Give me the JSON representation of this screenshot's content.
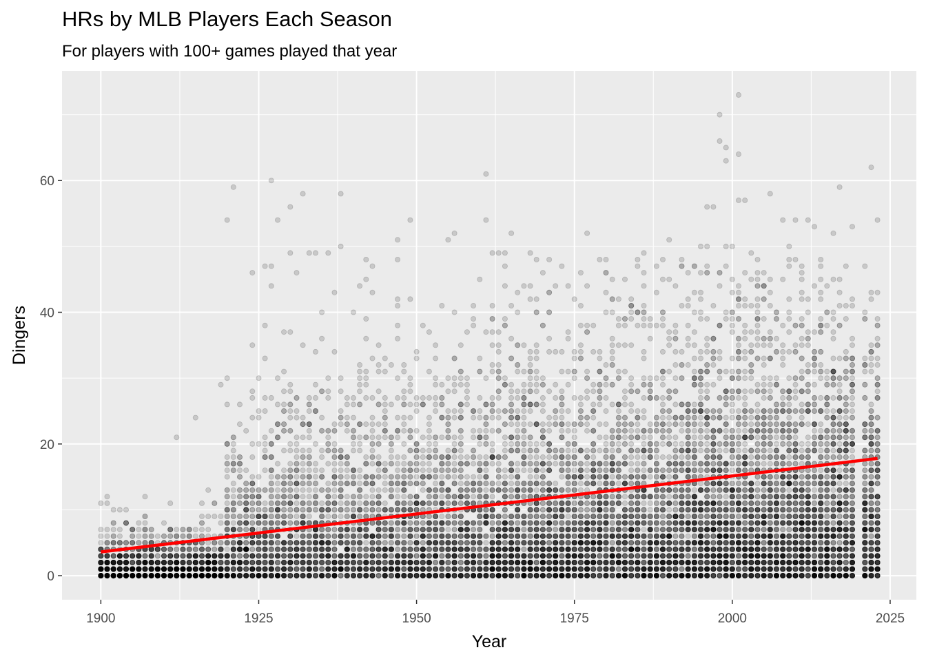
{
  "chart_data": {
    "type": "scatter",
    "title": "HRs by MLB Players Each Season",
    "subtitle": "For players with 100+ games played that year",
    "xlabel": "Year",
    "ylabel": "Dingers",
    "xlim": [
      1893.85,
      2029.15
    ],
    "ylim": [
      -3.65,
      76.65
    ],
    "x_ticks": [
      1900,
      1925,
      1950,
      1975,
      2000,
      2025
    ],
    "y_ticks": [
      0,
      20,
      40,
      60
    ],
    "grid": true,
    "background": "#EBEBEB",
    "point_color": "#000000",
    "point_alpha": 0.15,
    "trend": {
      "type": "linear",
      "color": "#FF0000",
      "points": [
        [
          1900,
          3.6
        ],
        [
          2023,
          17.8
        ]
      ]
    },
    "outliers": [
      [
        1921,
        59
      ],
      [
        1920,
        54
      ],
      [
        1927,
        60
      ],
      [
        1928,
        54
      ],
      [
        1930,
        56
      ],
      [
        1932,
        58
      ],
      [
        1938,
        58
      ],
      [
        1938,
        50
      ],
      [
        1961,
        61
      ],
      [
        1961,
        54
      ],
      [
        1949,
        54
      ],
      [
        1947,
        51
      ],
      [
        1998,
        70
      ],
      [
        1998,
        66
      ],
      [
        1999,
        65
      ],
      [
        1999,
        63
      ],
      [
        2001,
        73
      ],
      [
        2001,
        64
      ],
      [
        2022,
        62
      ],
      [
        2017,
        59
      ],
      [
        2006,
        58
      ],
      [
        1996,
        56
      ],
      [
        1997,
        56
      ],
      [
        2002,
        57
      ],
      [
        2001,
        57
      ],
      [
        2023,
        54
      ],
      [
        2010,
        54
      ],
      [
        1965,
        52
      ],
      [
        1977,
        52
      ],
      [
        1990,
        51
      ],
      [
        1956,
        52
      ],
      [
        1955,
        51
      ],
      [
        2013,
        53
      ],
      [
        2019,
        53
      ],
      [
        2016,
        52
      ],
      [
        1912,
        21
      ],
      [
        1915,
        24
      ],
      [
        1919,
        29
      ],
      [
        1930,
        49
      ],
      [
        1933,
        49
      ],
      [
        1934,
        49
      ],
      [
        1936,
        49
      ],
      [
        1924,
        46
      ],
      [
        1926,
        47
      ],
      [
        1927,
        47
      ],
      [
        1931,
        46
      ],
      [
        1962,
        49
      ],
      [
        1963,
        49
      ],
      [
        1964,
        49
      ],
      [
        1968,
        49
      ],
      [
        1969,
        48
      ],
      [
        1971,
        48
      ],
      [
        1973,
        47
      ],
      [
        1979,
        48
      ],
      [
        1980,
        48
      ],
      [
        1986,
        49
      ],
      [
        1992,
        47
      ],
      [
        1995,
        50
      ],
      [
        1996,
        50
      ],
      [
        1999,
        50
      ],
      [
        2000,
        50
      ],
      [
        2003,
        49
      ],
      [
        2009,
        50
      ],
      [
        2012,
        54
      ],
      [
        2008,
        54
      ]
    ],
    "density_model": "dense player-season cloud from 0 to ~40 HR per year, heaviest near 0-10 HR; sparse before 1920, denser after"
  }
}
